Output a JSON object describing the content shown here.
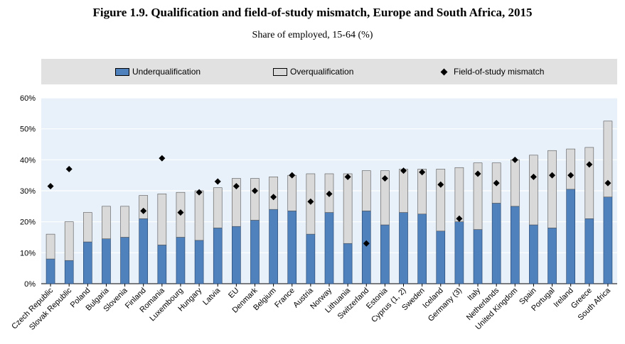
{
  "title": "Figure 1.9. Qualification and field-of-study mismatch, Europe and South Africa, 2015",
  "subtitle": "Share of employed, 15-64 (%)",
  "legend": {
    "under": "Underqualification",
    "over": "Overqualification",
    "field": "Field-of-study mismatch"
  },
  "colors": {
    "under": "#4f81bd",
    "over": "#d9d9d9",
    "field": "#000000",
    "plot_bg": "#e8f1fa",
    "grid": "#ffffff"
  },
  "chart_data": {
    "type": "bar",
    "stacked": true,
    "categories": [
      "Czech Republic",
      "Slovak Republic",
      "Poland",
      "Bulgaria",
      "Slovenia",
      "Finland",
      "Romania",
      "Luxembourg",
      "Hungary",
      "Latvia",
      "EU",
      "Denmark",
      "Belgium",
      "France",
      "Austria",
      "Norway",
      "Lithuania",
      "Switzerland",
      "Estonia",
      "Cyprus (1, 2)",
      "Sweden",
      "Iceland",
      "Germany (3)",
      "Italy",
      "Netherlands",
      "United Kingdom",
      "Spain",
      "Portugal",
      "Ireland",
      "Greece",
      "South Africa"
    ],
    "series": [
      {
        "name": "Underqualification",
        "type": "bar",
        "values": [
          8,
          7.5,
          13.5,
          14.5,
          15,
          21,
          12.5,
          15,
          14,
          18,
          18.5,
          20.5,
          24,
          23.5,
          16,
          23,
          13,
          23.5,
          19,
          23,
          22.5,
          17,
          20,
          17.5,
          26,
          25,
          19,
          18,
          30.5,
          21,
          28
        ]
      },
      {
        "name": "Overqualification",
        "type": "bar",
        "values": [
          8,
          12.5,
          9.5,
          10.5,
          10,
          7.5,
          16.5,
          14.5,
          16,
          13,
          15.5,
          13.5,
          10.5,
          11.5,
          19.5,
          12.5,
          22.5,
          13,
          17.5,
          14,
          14.5,
          20,
          17.5,
          21.5,
          13,
          15,
          22.5,
          25,
          13,
          23,
          24.5
        ]
      },
      {
        "name": "Field-of-study mismatch",
        "type": "scatter",
        "values": [
          31.5,
          37,
          null,
          null,
          null,
          23.5,
          40.5,
          23,
          29.5,
          33,
          31.5,
          30,
          28,
          35,
          26.5,
          29,
          34.5,
          13,
          34,
          36.5,
          36,
          32,
          21,
          35.5,
          32.5,
          40,
          34.5,
          35,
          35,
          38.5,
          32.5
        ]
      }
    ],
    "yticks": [
      "0%",
      "10%",
      "20%",
      "30%",
      "40%",
      "50%",
      "60%"
    ],
    "ylim": [
      0,
      60
    ],
    "grid": true,
    "legend_position": "top"
  }
}
